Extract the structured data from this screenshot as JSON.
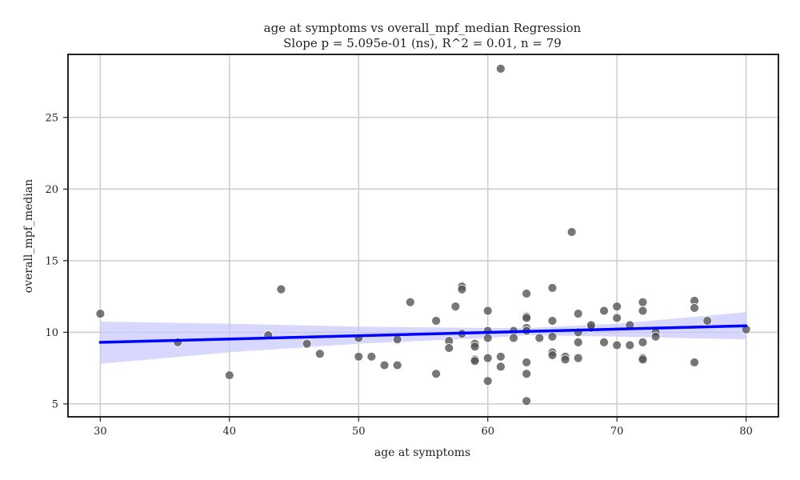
{
  "chart_data": {
    "type": "scatter",
    "title": "age at symptoms vs overall_mpf_median Regression",
    "subtitle": "Slope p = 5.095e-01 (ns), R^2 = 0.01, n = 79",
    "xlabel": "age at symptoms",
    "ylabel": "overall_mpf_median",
    "xlim": [
      27.5,
      82.5
    ],
    "ylim": [
      4.1,
      29.4
    ],
    "xticks": [
      30,
      40,
      50,
      60,
      70,
      80
    ],
    "yticks": [
      5,
      10,
      15,
      20,
      25
    ],
    "grid": true,
    "colors": {
      "points": "#555555",
      "regression_line": "#0000ff",
      "confidence_band": "#c8c8ff",
      "grid": "#cccccc",
      "axes": "#222222"
    },
    "series": [
      {
        "points": [
          [
            30,
            11.3
          ],
          [
            36,
            9.3
          ],
          [
            40,
            7.0
          ],
          [
            43,
            9.8
          ],
          [
            44,
            13.0
          ],
          [
            46,
            9.2
          ],
          [
            47,
            8.5
          ],
          [
            50,
            9.6
          ],
          [
            50,
            8.3
          ],
          [
            51,
            8.3
          ],
          [
            52,
            7.7
          ],
          [
            53,
            9.5
          ],
          [
            53,
            7.7
          ],
          [
            54,
            12.1
          ],
          [
            56,
            10.8
          ],
          [
            56,
            7.1
          ],
          [
            57,
            9.4
          ],
          [
            57,
            8.9
          ],
          [
            57.5,
            11.8
          ],
          [
            58,
            13.2
          ],
          [
            58,
            13.0
          ],
          [
            58,
            9.9
          ],
          [
            59,
            9.2
          ],
          [
            59,
            9.0
          ],
          [
            59,
            8.1
          ],
          [
            59,
            8.0
          ],
          [
            60,
            11.5
          ],
          [
            60,
            10.1
          ],
          [
            60,
            9.6
          ],
          [
            60,
            8.2
          ],
          [
            60,
            6.6
          ],
          [
            61,
            28.4
          ],
          [
            61,
            8.3
          ],
          [
            61,
            7.6
          ],
          [
            62,
            10.1
          ],
          [
            62,
            9.6
          ],
          [
            63,
            12.7
          ],
          [
            63,
            11.1
          ],
          [
            63,
            11.0
          ],
          [
            63,
            10.3
          ],
          [
            63,
            10.1
          ],
          [
            63,
            7.9
          ],
          [
            63,
            7.1
          ],
          [
            63,
            5.2
          ],
          [
            64,
            9.6
          ],
          [
            65,
            13.1
          ],
          [
            65,
            10.8
          ],
          [
            65,
            9.7
          ],
          [
            65,
            8.6
          ],
          [
            65,
            8.4
          ],
          [
            66,
            8.3
          ],
          [
            66,
            8.1
          ],
          [
            66.5,
            17.0
          ],
          [
            67,
            11.3
          ],
          [
            67,
            10.0
          ],
          [
            67,
            9.3
          ],
          [
            67,
            8.2
          ],
          [
            68,
            10.4
          ],
          [
            68,
            10.3
          ],
          [
            69,
            11.5
          ],
          [
            69,
            9.3
          ],
          [
            70,
            11.8
          ],
          [
            70,
            11.0
          ],
          [
            70,
            9.1
          ],
          [
            71,
            10.5
          ],
          [
            71,
            9.1
          ],
          [
            72,
            12.1
          ],
          [
            72,
            11.5
          ],
          [
            72,
            9.3
          ],
          [
            72,
            8.2
          ],
          [
            72,
            8.1
          ],
          [
            73,
            10.0
          ],
          [
            73,
            9.7
          ],
          [
            76,
            12.2
          ],
          [
            76,
            11.7
          ],
          [
            76,
            7.9
          ],
          [
            77,
            10.8
          ],
          [
            80,
            10.2
          ],
          [
            68,
            10.5
          ]
        ]
      }
    ],
    "regression": {
      "x": [
        30,
        80
      ],
      "y": [
        9.3,
        10.45
      ]
    },
    "confidence_band": {
      "x": [
        30,
        40,
        50,
        60,
        63,
        70,
        80
      ],
      "lower": [
        7.8,
        8.6,
        9.2,
        9.6,
        9.8,
        9.7,
        9.5
      ],
      "upper": [
        10.75,
        10.6,
        10.4,
        10.3,
        10.3,
        10.6,
        11.4
      ]
    }
  }
}
